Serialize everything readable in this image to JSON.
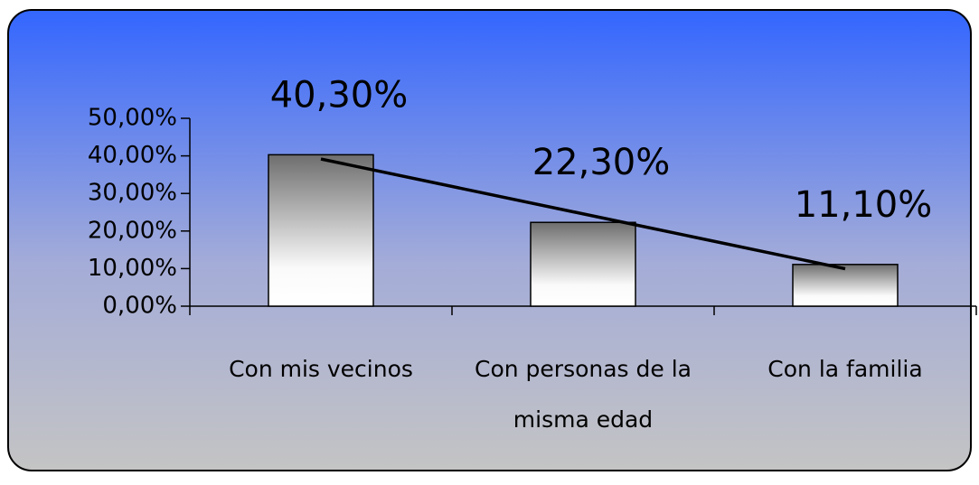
{
  "chart_data": {
    "type": "bar",
    "categories": [
      "Con mis vecinos",
      "Con personas de la misma edad",
      "Con la familia"
    ],
    "values": [
      40.3,
      22.3,
      11.1
    ],
    "value_labels": [
      "40,30%",
      "22,30%",
      "11,10%"
    ],
    "ylim": [
      0,
      50
    ],
    "yticks": [
      {
        "value": 0,
        "label": "0,00%"
      },
      {
        "value": 10,
        "label": "10,00%"
      },
      {
        "value": 20,
        "label": "20,00%"
      },
      {
        "value": 30,
        "label": "30,00%"
      },
      {
        "value": 40,
        "label": "40,00%"
      },
      {
        "value": 50,
        "label": "50,00%"
      }
    ],
    "trendline": "linear"
  }
}
